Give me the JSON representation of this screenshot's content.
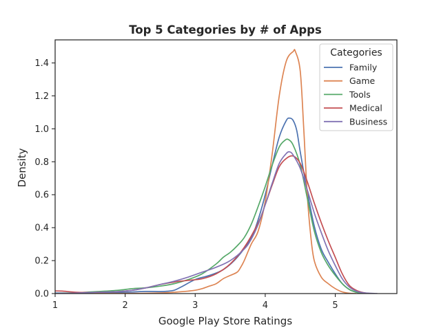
{
  "chart_data": {
    "type": "line",
    "title": "Top 5 Categories by # of Apps",
    "xlabel": "Google Play Store Ratings",
    "ylabel": "Density",
    "xlim": [
      1,
      5.88
    ],
    "ylim": [
      0,
      1.54
    ],
    "xticks": [
      1,
      2,
      3,
      4,
      5
    ],
    "xtick_labels": [
      "1",
      "2",
      "3",
      "4",
      "5"
    ],
    "yticks": [
      0,
      0.2,
      0.4,
      0.6,
      0.8,
      1.0,
      1.2,
      1.4
    ],
    "ytick_labels": [
      "0.0",
      "0.2",
      "0.4",
      "0.6",
      "0.8",
      "1.0",
      "1.2",
      "1.4"
    ],
    "grid": false,
    "legend": {
      "title": "Categories",
      "position": "top-right"
    },
    "series": [
      {
        "name": "Family",
        "color": "#4c72b0",
        "points": [
          [
            1.0,
            0.003
          ],
          [
            1.5,
            0.004
          ],
          [
            2.0,
            0.008
          ],
          [
            2.3,
            0.013
          ],
          [
            2.5,
            0.012
          ],
          [
            2.6,
            0.014
          ],
          [
            2.7,
            0.02
          ],
          [
            2.8,
            0.04
          ],
          [
            3.0,
            0.085
          ],
          [
            3.2,
            0.11
          ],
          [
            3.4,
            0.145
          ],
          [
            3.6,
            0.22
          ],
          [
            3.8,
            0.34
          ],
          [
            3.9,
            0.45
          ],
          [
            4.0,
            0.6
          ],
          [
            4.1,
            0.78
          ],
          [
            4.2,
            0.95
          ],
          [
            4.3,
            1.05
          ],
          [
            4.35,
            1.065
          ],
          [
            4.4,
            1.05
          ],
          [
            4.45,
            0.99
          ],
          [
            4.5,
            0.86
          ],
          [
            4.6,
            0.62
          ],
          [
            4.7,
            0.41
          ],
          [
            4.8,
            0.27
          ],
          [
            4.9,
            0.19
          ],
          [
            5.0,
            0.12
          ],
          [
            5.1,
            0.06
          ],
          [
            5.2,
            0.025
          ],
          [
            5.3,
            0.008
          ],
          [
            5.4,
            0.002
          ],
          [
            5.5,
            0.0
          ]
        ]
      },
      {
        "name": "Game",
        "color": "#dd8452",
        "points": [
          [
            1.0,
            0.0
          ],
          [
            2.0,
            0.001
          ],
          [
            2.5,
            0.004
          ],
          [
            2.7,
            0.008
          ],
          [
            2.9,
            0.015
          ],
          [
            3.0,
            0.02
          ],
          [
            3.1,
            0.03
          ],
          [
            3.2,
            0.045
          ],
          [
            3.3,
            0.06
          ],
          [
            3.4,
            0.09
          ],
          [
            3.5,
            0.11
          ],
          [
            3.6,
            0.13
          ],
          [
            3.65,
            0.16
          ],
          [
            3.7,
            0.2
          ],
          [
            3.8,
            0.3
          ],
          [
            3.9,
            0.38
          ],
          [
            4.0,
            0.56
          ],
          [
            4.1,
            0.85
          ],
          [
            4.2,
            1.2
          ],
          [
            4.3,
            1.41
          ],
          [
            4.4,
            1.47
          ],
          [
            4.43,
            1.47
          ],
          [
            4.5,
            1.35
          ],
          [
            4.55,
            1.0
          ],
          [
            4.6,
            0.6
          ],
          [
            4.65,
            0.35
          ],
          [
            4.7,
            0.2
          ],
          [
            4.8,
            0.1
          ],
          [
            4.9,
            0.06
          ],
          [
            5.0,
            0.03
          ],
          [
            5.1,
            0.01
          ],
          [
            5.2,
            0.002
          ],
          [
            5.3,
            0.0
          ]
        ]
      },
      {
        "name": "Tools",
        "color": "#55a868",
        "points": [
          [
            1.0,
            0.0
          ],
          [
            1.3,
            0.005
          ],
          [
            1.6,
            0.012
          ],
          [
            1.9,
            0.02
          ],
          [
            2.1,
            0.03
          ],
          [
            2.3,
            0.035
          ],
          [
            2.5,
            0.045
          ],
          [
            2.7,
            0.06
          ],
          [
            2.9,
            0.085
          ],
          [
            3.1,
            0.12
          ],
          [
            3.3,
            0.18
          ],
          [
            3.4,
            0.22
          ],
          [
            3.5,
            0.25
          ],
          [
            3.6,
            0.29
          ],
          [
            3.7,
            0.34
          ],
          [
            3.8,
            0.42
          ],
          [
            3.9,
            0.53
          ],
          [
            4.0,
            0.65
          ],
          [
            4.1,
            0.78
          ],
          [
            4.2,
            0.89
          ],
          [
            4.28,
            0.93
          ],
          [
            4.33,
            0.935
          ],
          [
            4.4,
            0.9
          ],
          [
            4.5,
            0.78
          ],
          [
            4.6,
            0.58
          ],
          [
            4.7,
            0.38
          ],
          [
            4.8,
            0.25
          ],
          [
            4.9,
            0.17
          ],
          [
            5.0,
            0.11
          ],
          [
            5.1,
            0.06
          ],
          [
            5.2,
            0.025
          ],
          [
            5.3,
            0.008
          ],
          [
            5.4,
            0.0
          ]
        ]
      },
      {
        "name": "Medical",
        "color": "#c44e52",
        "points": [
          [
            1.0,
            0.016
          ],
          [
            1.1,
            0.015
          ],
          [
            1.3,
            0.008
          ],
          [
            1.5,
            0.007
          ],
          [
            1.7,
            0.009
          ],
          [
            1.9,
            0.012
          ],
          [
            2.1,
            0.02
          ],
          [
            2.3,
            0.035
          ],
          [
            2.5,
            0.055
          ],
          [
            2.7,
            0.07
          ],
          [
            2.9,
            0.08
          ],
          [
            3.1,
            0.09
          ],
          [
            3.3,
            0.12
          ],
          [
            3.5,
            0.18
          ],
          [
            3.7,
            0.28
          ],
          [
            3.9,
            0.43
          ],
          [
            4.0,
            0.54
          ],
          [
            4.1,
            0.66
          ],
          [
            4.2,
            0.77
          ],
          [
            4.3,
            0.82
          ],
          [
            4.4,
            0.835
          ],
          [
            4.5,
            0.79
          ],
          [
            4.6,
            0.68
          ],
          [
            4.7,
            0.55
          ],
          [
            4.8,
            0.43
          ],
          [
            4.9,
            0.32
          ],
          [
            5.0,
            0.22
          ],
          [
            5.1,
            0.12
          ],
          [
            5.2,
            0.05
          ],
          [
            5.3,
            0.02
          ],
          [
            5.4,
            0.006
          ],
          [
            5.5,
            0.0
          ]
        ]
      },
      {
        "name": "Business",
        "color": "#8172b3",
        "points": [
          [
            1.0,
            0.0
          ],
          [
            1.3,
            0.003
          ],
          [
            1.6,
            0.008
          ],
          [
            1.9,
            0.012
          ],
          [
            2.1,
            0.02
          ],
          [
            2.3,
            0.035
          ],
          [
            2.5,
            0.055
          ],
          [
            2.7,
            0.075
          ],
          [
            2.9,
            0.1
          ],
          [
            3.1,
            0.13
          ],
          [
            3.3,
            0.16
          ],
          [
            3.5,
            0.2
          ],
          [
            3.7,
            0.27
          ],
          [
            3.8,
            0.33
          ],
          [
            3.9,
            0.42
          ],
          [
            4.0,
            0.54
          ],
          [
            4.1,
            0.67
          ],
          [
            4.2,
            0.79
          ],
          [
            4.3,
            0.85
          ],
          [
            4.35,
            0.86
          ],
          [
            4.4,
            0.84
          ],
          [
            4.5,
            0.76
          ],
          [
            4.6,
            0.63
          ],
          [
            4.7,
            0.49
          ],
          [
            4.8,
            0.37
          ],
          [
            4.9,
            0.26
          ],
          [
            5.0,
            0.17
          ],
          [
            5.1,
            0.09
          ],
          [
            5.2,
            0.04
          ],
          [
            5.3,
            0.015
          ],
          [
            5.4,
            0.005
          ],
          [
            5.6,
            0.0
          ]
        ]
      }
    ]
  }
}
